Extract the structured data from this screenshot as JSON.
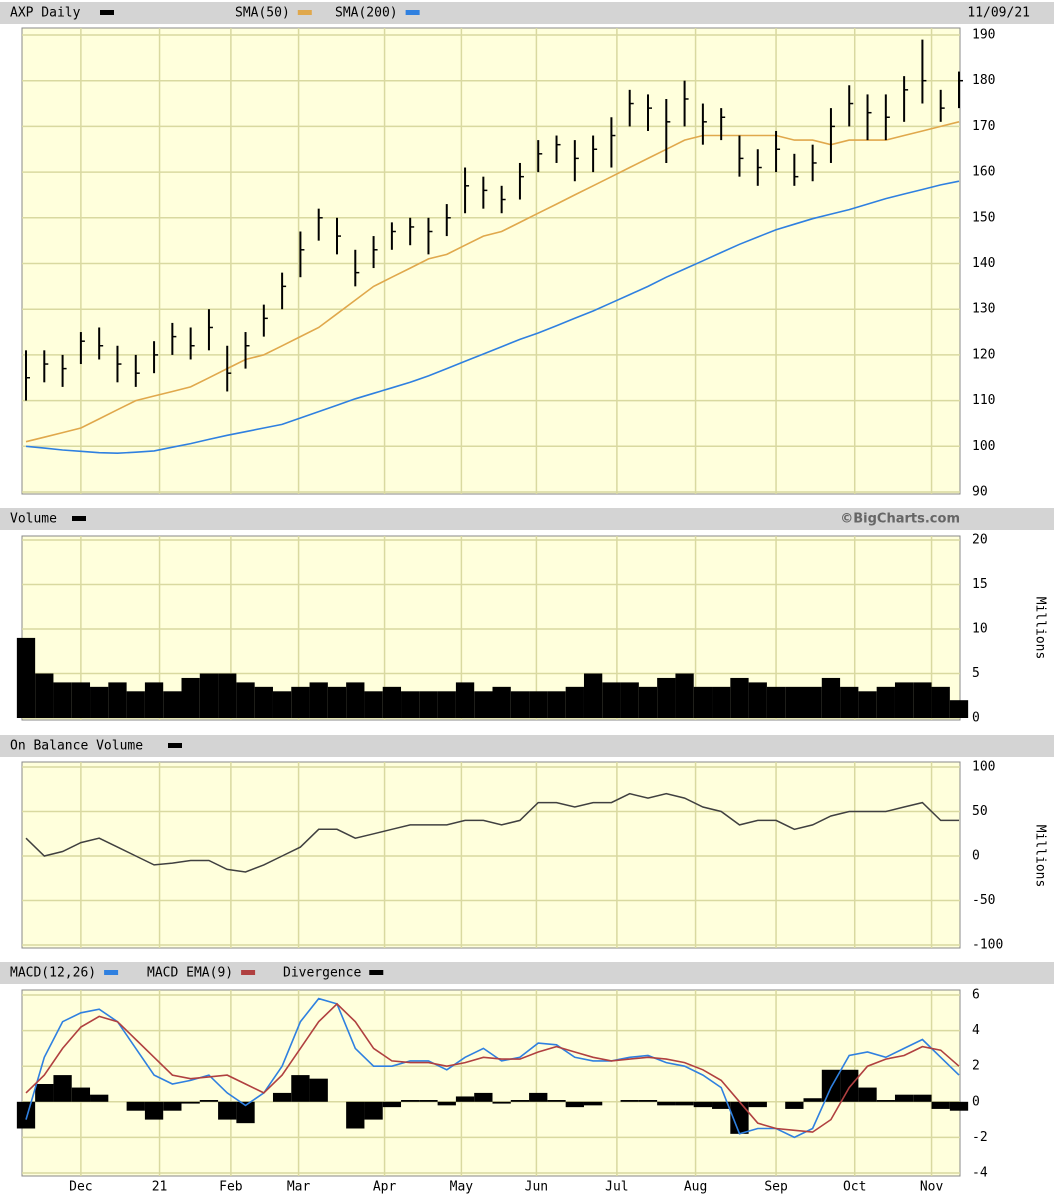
{
  "chart_data": [
    {
      "type": "ohlc",
      "title": "AXP Daily",
      "date": "11/09/21",
      "color": "#000000",
      "high": [
        121,
        121,
        120,
        125,
        126,
        122,
        120,
        123,
        127,
        126,
        130,
        122,
        125,
        131,
        138,
        147,
        152,
        150,
        143,
        146,
        149,
        150,
        150,
        153,
        161,
        159,
        157,
        162,
        167,
        168,
        167,
        168,
        172,
        178,
        177,
        176,
        180,
        175,
        174,
        168,
        165,
        169,
        164,
        166,
        174,
        179,
        177,
        177,
        181,
        189,
        178,
        182
      ],
      "low": [
        110,
        114,
        113,
        118,
        119,
        114,
        113,
        116,
        120,
        119,
        121,
        112,
        117,
        124,
        130,
        137,
        145,
        142,
        135,
        139,
        143,
        144,
        142,
        146,
        151,
        152,
        151,
        154,
        160,
        162,
        158,
        160,
        161,
        170,
        169,
        162,
        170,
        166,
        167,
        159,
        157,
        160,
        157,
        158,
        162,
        170,
        167,
        167,
        171,
        175,
        171,
        174
      ],
      "close": [
        115,
        118,
        117,
        123,
        122,
        118,
        116,
        120,
        124,
        122,
        126,
        116,
        122,
        128,
        135,
        143,
        150,
        146,
        138,
        143,
        147,
        148,
        147,
        150,
        157,
        156,
        154,
        159,
        164,
        166,
        163,
        165,
        168,
        175,
        174,
        171,
        176,
        171,
        172,
        163,
        161,
        165,
        159,
        162,
        170,
        175,
        173,
        172,
        178,
        180,
        174,
        180
      ],
      "series": [
        {
          "name": "SMA(50)",
          "color": "#e0a84c",
          "values": [
            101,
            102,
            103,
            104,
            106,
            108,
            110,
            111,
            112,
            113,
            115,
            117,
            119,
            120,
            122,
            124,
            126,
            129,
            132,
            135,
            137,
            139,
            141,
            142,
            144,
            146,
            147,
            149,
            151,
            153,
            155,
            157,
            159,
            161,
            163,
            165,
            167,
            168,
            168,
            168,
            168,
            168,
            167,
            167,
            166,
            167,
            167,
            167,
            168,
            169,
            170,
            171
          ]
        },
        {
          "name": "SMA(200)",
          "color": "#2f80e0",
          "values": [
            100,
            99.6,
            99.2,
            98.9,
            98.6,
            98.5,
            98.7,
            99,
            99.8,
            100.6,
            101.5,
            102.4,
            103.2,
            104,
            104.8,
            106.2,
            107.6,
            109,
            110.4,
            111.6,
            112.8,
            114,
            115.4,
            117,
            118.6,
            120.2,
            121.8,
            123.4,
            124.8,
            126.4,
            128,
            129.6,
            131.4,
            133.2,
            135,
            137,
            138.8,
            140.6,
            142.4,
            144.2,
            145.8,
            147.4,
            148.6,
            149.8,
            150.8,
            151.8,
            153,
            154.2,
            155.2,
            156.2,
            157.2,
            158
          ]
        }
      ],
      "ylim": [
        90,
        190
      ],
      "yticks": [
        90,
        100,
        110,
        120,
        130,
        140,
        150,
        160,
        170,
        180,
        190
      ],
      "grid": true
    },
    {
      "type": "bar",
      "title": "Volume",
      "credit": "©BigCharts.com",
      "y_label": "Millions",
      "color": "#000000",
      "values": [
        9,
        5,
        4,
        4,
        3.5,
        4,
        3,
        4,
        3,
        4.5,
        5,
        5,
        4,
        3.5,
        3,
        3.5,
        4,
        3.5,
        4,
        3,
        3.5,
        3,
        3,
        3,
        4,
        3,
        3.5,
        3,
        3,
        3,
        3.5,
        5,
        4,
        4,
        3.5,
        4.5,
        5,
        3.5,
        3.5,
        4.5,
        4,
        3.5,
        3.5,
        3.5,
        4.5,
        3.5,
        3,
        3.5,
        4,
        4,
        3.5,
        2
      ],
      "ylim": [
        0,
        20
      ],
      "yticks": [
        0,
        5,
        10,
        15,
        20
      ],
      "grid": true
    },
    {
      "type": "line",
      "title": "On Balance Volume",
      "y_label": "Millions",
      "color": "#404040",
      "values": [
        20,
        0,
        5,
        15,
        20,
        10,
        0,
        -10,
        -8,
        -5,
        -5,
        -15,
        -18,
        -10,
        0,
        10,
        30,
        30,
        20,
        25,
        30,
        35,
        35,
        35,
        40,
        40,
        35,
        40,
        60,
        60,
        55,
        60,
        60,
        70,
        65,
        70,
        65,
        55,
        50,
        35,
        40,
        40,
        30,
        35,
        45,
        50,
        50,
        50,
        55,
        60,
        40,
        40
      ],
      "ylim": [
        -100,
        100
      ],
      "yticks": [
        -100,
        -50,
        0,
        50,
        100
      ],
      "grid": true
    },
    {
      "type": "macd",
      "series": [
        {
          "name": "MACD(12,26)",
          "color": "#2f80e0",
          "values": [
            -1,
            2.5,
            4.5,
            5,
            5.2,
            4.5,
            3,
            1.5,
            1,
            1.2,
            1.5,
            0.5,
            -0.2,
            0.5,
            2,
            4.5,
            5.8,
            5.5,
            3,
            2,
            2,
            2.3,
            2.3,
            1.8,
            2.5,
            3,
            2.3,
            2.5,
            3.3,
            3.2,
            2.5,
            2.3,
            2.3,
            2.5,
            2.6,
            2.2,
            2,
            1.5,
            0.8,
            -1.8,
            -1.5,
            -1.5,
            -2,
            -1.5,
            0.8,
            2.6,
            2.8,
            2.5,
            3,
            3.5,
            2.5,
            1.5
          ]
        },
        {
          "name": "MACD EMA(9)",
          "color": "#b04040",
          "values": [
            0.5,
            1.5,
            3,
            4.2,
            4.8,
            4.5,
            3.5,
            2.5,
            1.5,
            1.3,
            1.4,
            1.5,
            1,
            0.5,
            1.5,
            3,
            4.5,
            5.5,
            4.5,
            3,
            2.3,
            2.2,
            2.2,
            2,
            2.2,
            2.5,
            2.4,
            2.4,
            2.8,
            3.1,
            2.8,
            2.5,
            2.3,
            2.4,
            2.5,
            2.4,
            2.2,
            1.8,
            1.2,
            0,
            -1.2,
            -1.5,
            -1.6,
            -1.7,
            -1,
            0.8,
            2,
            2.4,
            2.6,
            3.1,
            2.9,
            2
          ]
        },
        {
          "name": "Divergence",
          "color": "#000000",
          "values": [
            -1.5,
            1,
            1.5,
            0.8,
            0.4,
            0,
            -0.5,
            -1,
            -0.5,
            -0.1,
            0.1,
            -1,
            -1.2,
            0,
            0.5,
            1.5,
            1.3,
            0,
            -1.5,
            -1,
            -0.3,
            0.1,
            0.1,
            -0.2,
            0.3,
            0.5,
            -0.1,
            0.1,
            0.5,
            0.1,
            -0.3,
            -0.2,
            0,
            0.1,
            0.1,
            -0.2,
            -0.2,
            -0.3,
            -0.4,
            -1.8,
            -0.3,
            0,
            -0.4,
            0.2,
            1.8,
            1.8,
            0.8,
            0.1,
            0.4,
            0.4,
            -0.4,
            -0.5
          ]
        }
      ],
      "ylim": [
        -4,
        6
      ],
      "yticks": [
        -4,
        -2,
        0,
        2,
        4,
        6
      ],
      "grid": true,
      "xlim": [
        0,
        51
      ],
      "xticks": [
        {
          "value": 3.0,
          "label": "Dec"
        },
        {
          "value": 7.3,
          "label": "21"
        },
        {
          "value": 11.2,
          "label": "Feb"
        },
        {
          "value": 14.9,
          "label": "Mar"
        },
        {
          "value": 19.6,
          "label": "Apr"
        },
        {
          "value": 23.8,
          "label": "May"
        },
        {
          "value": 27.9,
          "label": "Jun"
        },
        {
          "value": 32.3,
          "label": "Jul"
        },
        {
          "value": 36.6,
          "label": "Aug"
        },
        {
          "value": 41.0,
          "label": "Sep"
        },
        {
          "value": 45.3,
          "label": "Oct"
        },
        {
          "value": 49.5,
          "label": "Nov"
        }
      ]
    }
  ]
}
